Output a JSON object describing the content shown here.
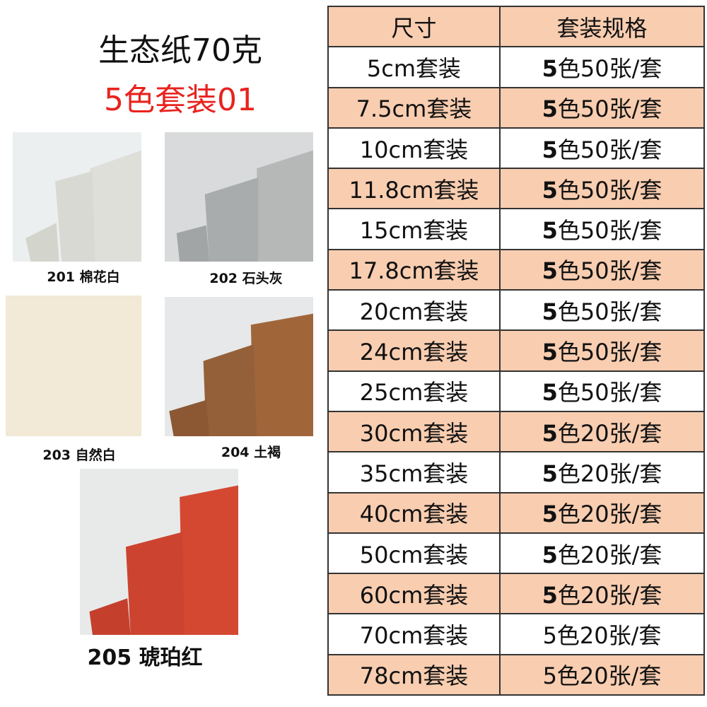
{
  "header": {
    "title": "生态纸70克",
    "subtitle": "5色套装01"
  },
  "swatches": [
    {
      "label": "201 棉花白"
    },
    {
      "label": "202 石头灰"
    },
    {
      "label": "203 自然白"
    },
    {
      "label": "204 土褐"
    },
    {
      "label": "205 琥珀红"
    }
  ],
  "table": {
    "headers": [
      "尺寸",
      "套装规格"
    ],
    "rows": [
      {
        "size": "5cm套装",
        "spec": "5色50张/套",
        "lead_bold": true
      },
      {
        "size": "7.5cm套装",
        "spec": "5色50张/套",
        "lead_bold": true
      },
      {
        "size": "10cm套装",
        "spec": "5色50张/套",
        "lead_bold": true
      },
      {
        "size": "11.8cm套装",
        "spec": "5色50张/套",
        "lead_bold": true
      },
      {
        "size": "15cm套装",
        "spec": "5色50张/套",
        "lead_bold": true
      },
      {
        "size": "17.8cm套装",
        "spec": "5色50张/套",
        "lead_bold": true
      },
      {
        "size": "20cm套装",
        "spec": "5色50张/套",
        "lead_bold": true
      },
      {
        "size": "24cm套装",
        "spec": "5色50张/套",
        "lead_bold": true
      },
      {
        "size": "25cm套装",
        "spec": "5色50张/套",
        "lead_bold": true
      },
      {
        "size": "30cm套装",
        "spec": "5色20张/套",
        "lead_bold": true
      },
      {
        "size": "35cm套装",
        "spec": "5色20张/套",
        "lead_bold": true
      },
      {
        "size": "40cm套装",
        "spec": "5色20张/套",
        "lead_bold": true
      },
      {
        "size": "50cm套装",
        "spec": "5色20张/套",
        "lead_bold": true
      },
      {
        "size": "60cm套装",
        "spec": "5色20张/套",
        "lead_bold": true
      },
      {
        "size": "70cm套装",
        "spec": "5色20张/套",
        "lead_bold": false
      },
      {
        "size": "78cm套装",
        "spec": "5色20张/套",
        "lead_bold": false
      }
    ]
  }
}
